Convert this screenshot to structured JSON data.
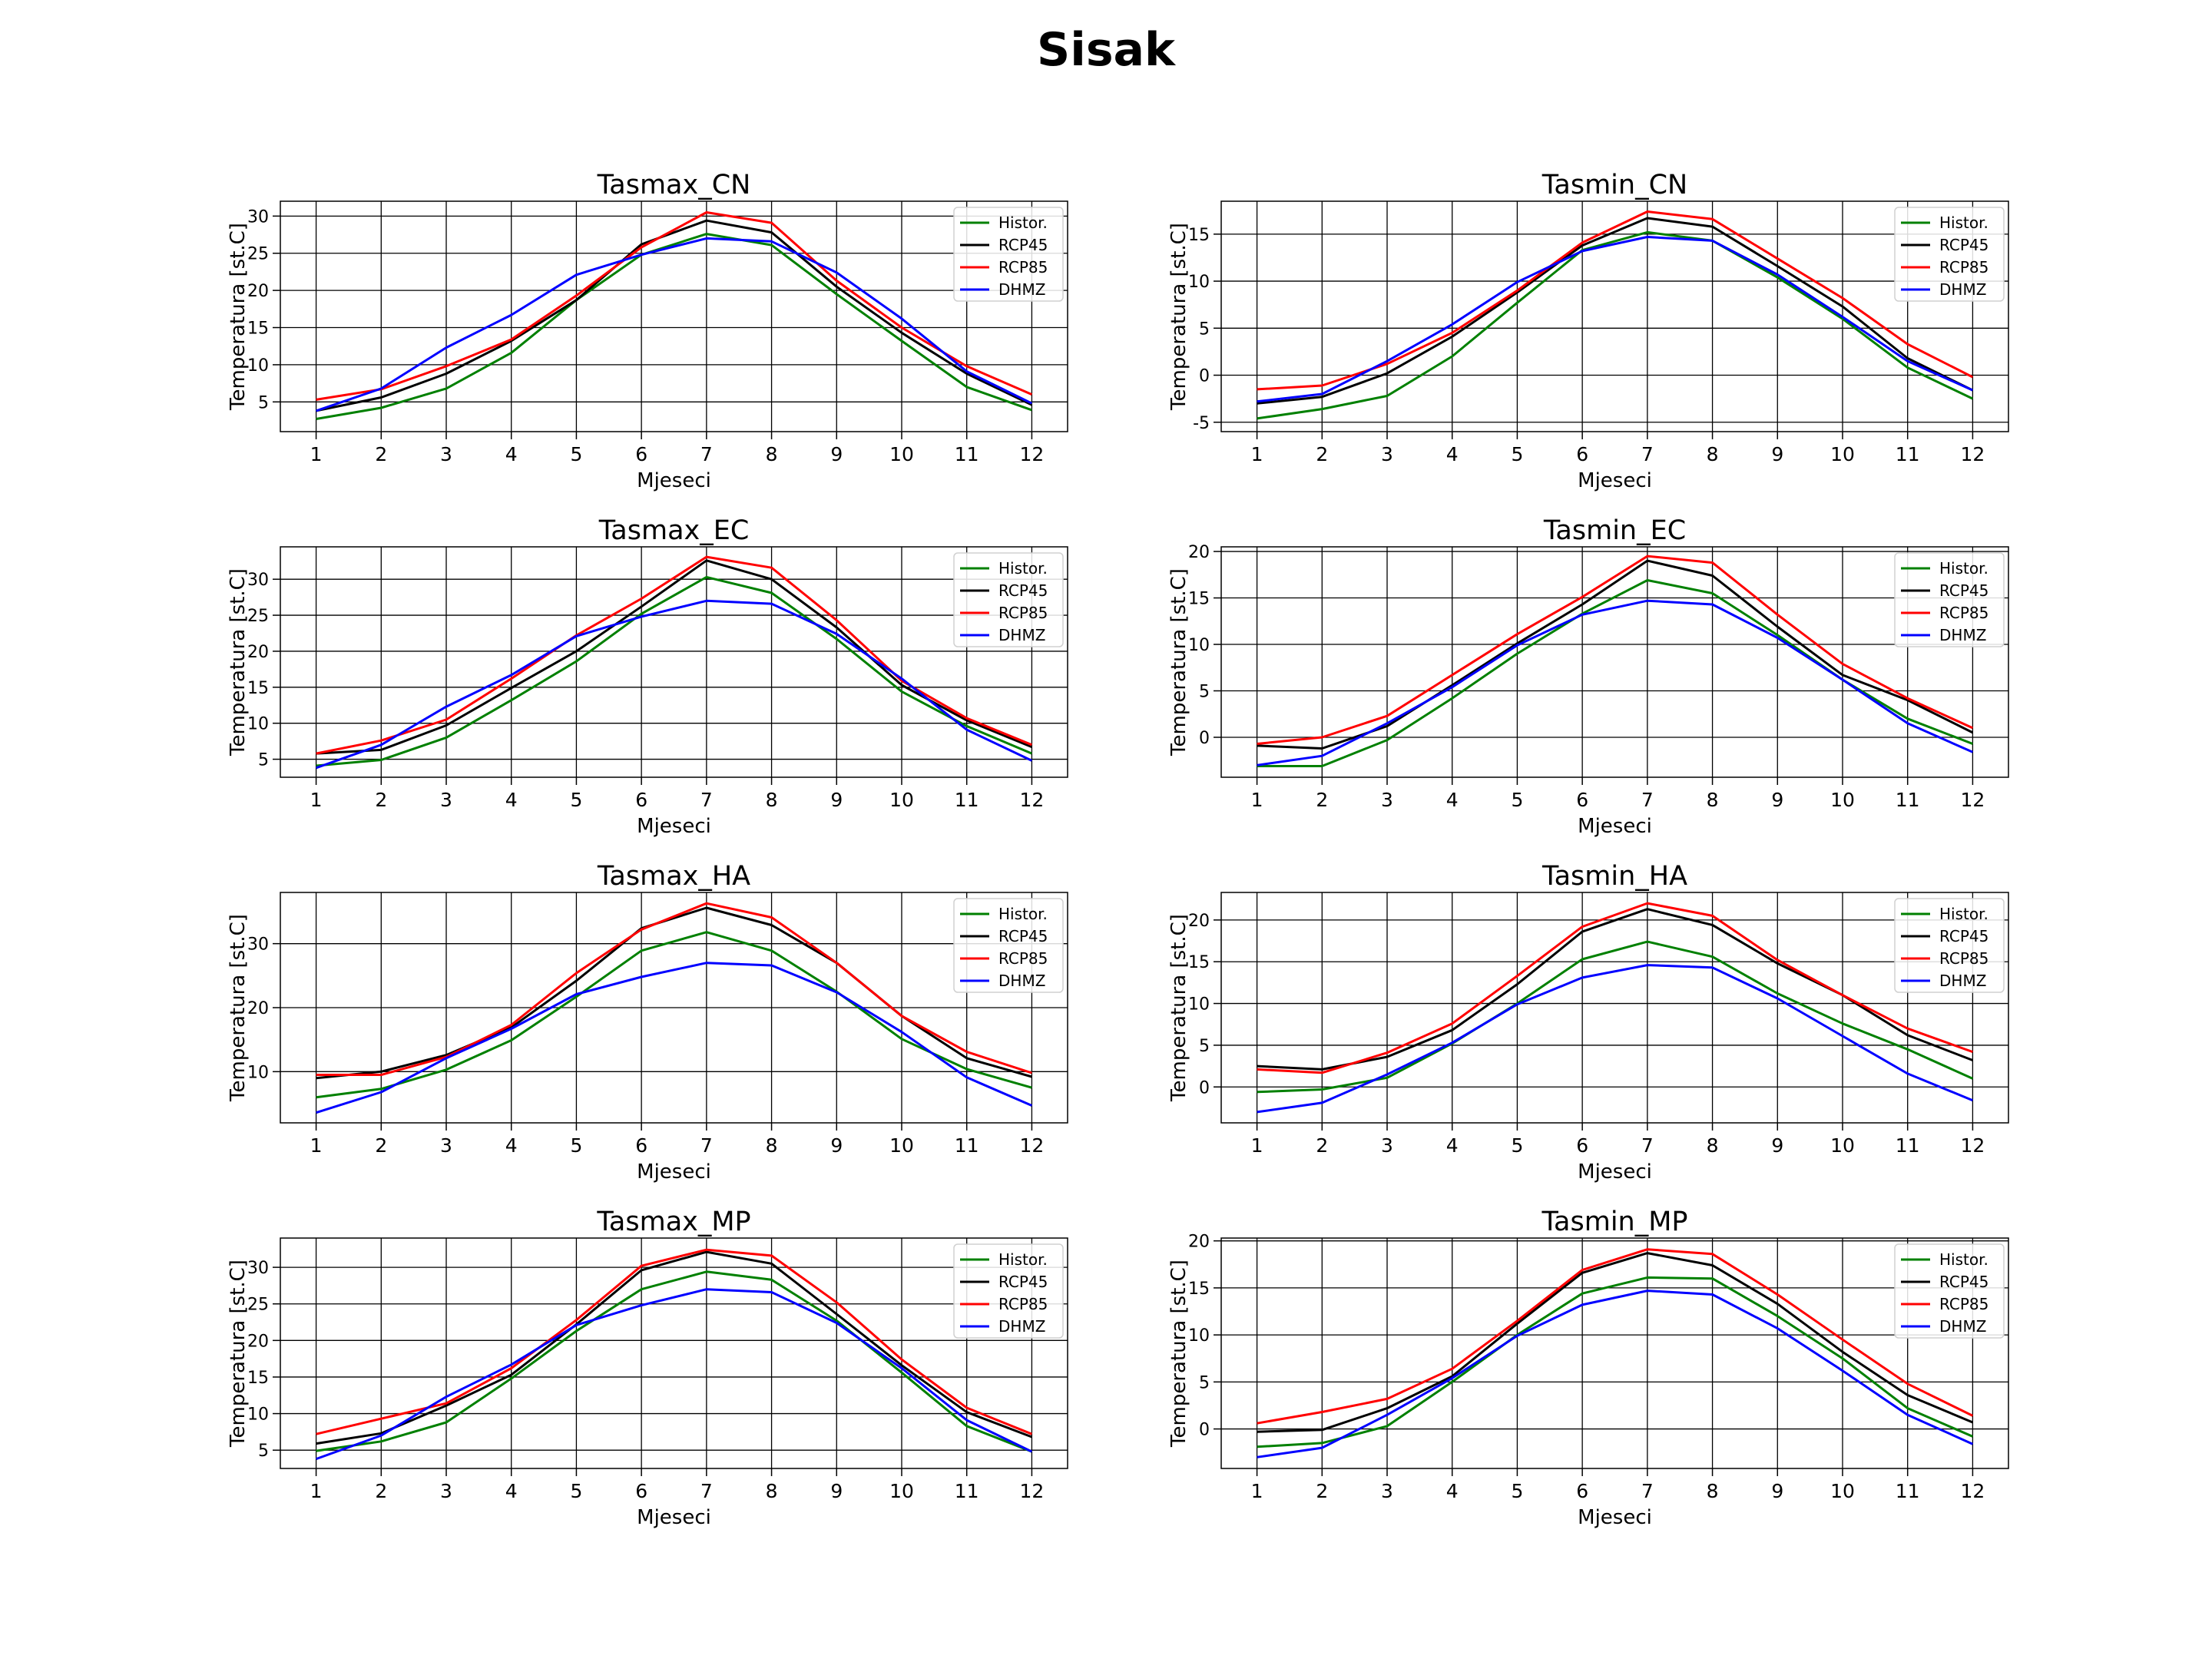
{
  "suptitle": "Sisak",
  "colors": {
    "Histor.": "#008000",
    "RCP45": "#000000",
    "RCP85": "#ff0000",
    "DHMZ": "#0000ff"
  },
  "chart_data": [
    {
      "type": "line",
      "title": "Tasmax_CN",
      "xlabel": "Mjeseci",
      "ylabel": "Temperatura [st.C]",
      "x": [
        1,
        2,
        3,
        4,
        5,
        6,
        7,
        8,
        9,
        10,
        11,
        12
      ],
      "ylim": [
        1,
        32
      ],
      "yticks": [
        5,
        10,
        15,
        20,
        25,
        30
      ],
      "grid": true,
      "legend": "top-right",
      "series": [
        {
          "name": "Histor.",
          "values": [
            2.7,
            4.2,
            6.8,
            11.6,
            18.7,
            24.8,
            27.6,
            26.1,
            19.5,
            13.2,
            7.0,
            3.9
          ]
        },
        {
          "name": "RCP45",
          "values": [
            3.8,
            5.6,
            8.8,
            13.2,
            18.7,
            26.2,
            29.4,
            27.8,
            20.5,
            14.3,
            8.8,
            4.6
          ]
        },
        {
          "name": "RCP85",
          "values": [
            5.3,
            6.7,
            9.8,
            13.4,
            19.3,
            25.8,
            30.5,
            29.1,
            21.3,
            15.0,
            9.8,
            6.0
          ]
        },
        {
          "name": "DHMZ",
          "values": [
            3.8,
            6.8,
            12.3,
            16.7,
            22.1,
            24.8,
            27.0,
            26.6,
            22.4,
            16.2,
            9.1,
            4.8
          ]
        }
      ]
    },
    {
      "type": "line",
      "title": "Tasmin_CN",
      "xlabel": "Mjeseci",
      "ylabel": "Temperatura [st.C]",
      "x": [
        1,
        2,
        3,
        4,
        5,
        6,
        7,
        8,
        9,
        10,
        11,
        12
      ],
      "ylim": [
        -6,
        18.5
      ],
      "yticks": [
        -5,
        0,
        5,
        10,
        15
      ],
      "grid": true,
      "legend": "top-right",
      "series": [
        {
          "name": "Histor.",
          "values": [
            -4.6,
            -3.6,
            -2.2,
            2.0,
            7.7,
            13.3,
            15.2,
            14.3,
            10.4,
            6.0,
            0.8,
            -2.5
          ]
        },
        {
          "name": "RCP45",
          "values": [
            -3.0,
            -2.3,
            0.2,
            4.1,
            8.8,
            13.8,
            16.7,
            15.8,
            11.6,
            7.3,
            1.8,
            -1.6
          ]
        },
        {
          "name": "RCP85",
          "values": [
            -1.5,
            -1.1,
            1.2,
            4.5,
            9.0,
            14.1,
            17.4,
            16.6,
            12.4,
            8.2,
            3.3,
            -0.2
          ]
        },
        {
          "name": "DHMZ",
          "values": [
            -2.8,
            -2.0,
            1.5,
            5.4,
            9.9,
            13.2,
            14.7,
            14.3,
            10.7,
            6.2,
            1.5,
            -1.6
          ]
        }
      ]
    },
    {
      "type": "line",
      "title": "Tasmax_EC",
      "xlabel": "Mjeseci",
      "ylabel": "Temperatura [st.C]",
      "x": [
        1,
        2,
        3,
        4,
        5,
        6,
        7,
        8,
        9,
        10,
        11,
        12
      ],
      "ylim": [
        2.5,
        34.5
      ],
      "yticks": [
        5,
        10,
        15,
        20,
        25,
        30
      ],
      "grid": true,
      "legend": "top-right",
      "series": [
        {
          "name": "Histor.",
          "values": [
            4.1,
            4.9,
            8.0,
            13.2,
            18.6,
            25.2,
            30.3,
            28.1,
            21.7,
            14.4,
            9.6,
            5.8
          ]
        },
        {
          "name": "RCP45",
          "values": [
            5.8,
            6.3,
            9.7,
            14.9,
            20.0,
            26.2,
            32.6,
            30.0,
            23.3,
            15.3,
            10.4,
            6.7
          ]
        },
        {
          "name": "RCP85",
          "values": [
            5.8,
            7.6,
            10.5,
            16.2,
            22.2,
            27.3,
            33.1,
            31.6,
            24.3,
            15.9,
            10.7,
            7.0
          ]
        },
        {
          "name": "DHMZ",
          "values": [
            3.8,
            7.0,
            12.3,
            16.7,
            22.1,
            24.8,
            27.0,
            26.6,
            22.4,
            16.2,
            9.1,
            4.8
          ]
        }
      ]
    },
    {
      "type": "line",
      "title": "Tasmin_EC",
      "xlabel": "Mjeseci",
      "ylabel": "Temperatura [st.C]",
      "x": [
        1,
        2,
        3,
        4,
        5,
        6,
        7,
        8,
        9,
        10,
        11,
        12
      ],
      "ylim": [
        -4.3,
        20.5
      ],
      "yticks": [
        0,
        5,
        10,
        15,
        20
      ],
      "grid": true,
      "legend": "top-right",
      "series": [
        {
          "name": "Histor.",
          "values": [
            -3.1,
            -3.1,
            -0.3,
            4.2,
            9.0,
            13.3,
            16.9,
            15.5,
            11.0,
            6.2,
            2.0,
            -0.7
          ]
        },
        {
          "name": "RCP45",
          "values": [
            -0.9,
            -1.2,
            1.2,
            5.6,
            10.1,
            14.3,
            19.0,
            17.4,
            11.9,
            6.7,
            4.0,
            0.5
          ]
        },
        {
          "name": "RCP85",
          "values": [
            -0.7,
            0.0,
            2.3,
            6.7,
            11.1,
            15.1,
            19.5,
            18.8,
            13.2,
            7.9,
            4.2,
            1.0
          ]
        },
        {
          "name": "DHMZ",
          "values": [
            -3.0,
            -2.0,
            1.5,
            5.4,
            9.9,
            13.2,
            14.7,
            14.3,
            10.7,
            6.2,
            1.5,
            -1.6
          ]
        }
      ]
    },
    {
      "type": "line",
      "title": "Tasmax_HA",
      "xlabel": "Mjeseci",
      "ylabel": "Temperatura [st.C]",
      "x": [
        1,
        2,
        3,
        4,
        5,
        6,
        7,
        8,
        9,
        10,
        11,
        12
      ],
      "ylim": [
        2,
        38
      ],
      "yticks": [
        10,
        20,
        30
      ],
      "grid": true,
      "legend": "top-right",
      "series": [
        {
          "name": "Histor.",
          "values": [
            6.0,
            7.3,
            10.3,
            14.9,
            21.7,
            28.9,
            31.8,
            28.9,
            22.5,
            15.1,
            10.4,
            7.5
          ]
        },
        {
          "name": "RCP45",
          "values": [
            9.0,
            10.0,
            12.6,
            16.9,
            24.2,
            32.4,
            35.6,
            32.9,
            27.0,
            18.7,
            12.1,
            9.2
          ]
        },
        {
          "name": "RCP85",
          "values": [
            9.5,
            9.5,
            12.3,
            17.3,
            25.4,
            32.2,
            36.3,
            34.1,
            27.0,
            18.7,
            13.1,
            9.8
          ]
        },
        {
          "name": "DHMZ",
          "values": [
            3.6,
            6.8,
            12.1,
            16.7,
            22.1,
            24.8,
            27.0,
            26.6,
            22.4,
            16.2,
            9.1,
            4.7
          ]
        }
      ]
    },
    {
      "type": "line",
      "title": "Tasmin_HA",
      "xlabel": "Mjeseci",
      "ylabel": "Temperatura [st.C]",
      "x": [
        1,
        2,
        3,
        4,
        5,
        6,
        7,
        8,
        9,
        10,
        11,
        12
      ],
      "ylim": [
        -4.3,
        23.3
      ],
      "yticks": [
        0,
        5,
        10,
        15,
        20
      ],
      "grid": true,
      "legend": "top-right",
      "series": [
        {
          "name": "Histor.",
          "values": [
            -0.6,
            -0.3,
            1.1,
            5.2,
            10.0,
            15.3,
            17.4,
            15.6,
            11.2,
            7.6,
            4.5,
            1.0
          ]
        },
        {
          "name": "RCP45",
          "values": [
            2.5,
            2.1,
            3.6,
            6.8,
            12.3,
            18.6,
            21.3,
            19.4,
            14.8,
            11.0,
            6.2,
            3.2
          ]
        },
        {
          "name": "RCP85",
          "values": [
            2.1,
            1.7,
            4.1,
            7.6,
            13.3,
            19.2,
            22.0,
            20.5,
            15.2,
            11.0,
            7.0,
            4.2
          ]
        },
        {
          "name": "DHMZ",
          "values": [
            -3.0,
            -1.9,
            1.5,
            5.3,
            9.9,
            13.1,
            14.6,
            14.3,
            10.6,
            6.1,
            1.6,
            -1.6
          ]
        }
      ]
    },
    {
      "type": "line",
      "title": "Tasmax_MP",
      "xlabel": "Mjeseci",
      "ylabel": "Temperatura [st.C]",
      "x": [
        1,
        2,
        3,
        4,
        5,
        6,
        7,
        8,
        9,
        10,
        11,
        12
      ],
      "ylim": [
        2.5,
        34
      ],
      "yticks": [
        5,
        10,
        15,
        20,
        25,
        30
      ],
      "grid": true,
      "legend": "top-right",
      "series": [
        {
          "name": "Histor.",
          "values": [
            4.9,
            6.2,
            8.8,
            14.8,
            21.3,
            27.0,
            29.4,
            28.3,
            22.7,
            15.6,
            8.3,
            4.8
          ]
        },
        {
          "name": "RCP45",
          "values": [
            5.9,
            7.3,
            11.1,
            15.3,
            22.2,
            29.6,
            32.1,
            30.5,
            23.6,
            16.6,
            10.2,
            6.8
          ]
        },
        {
          "name": "RCP85",
          "values": [
            7.2,
            9.3,
            11.4,
            16.2,
            22.8,
            30.2,
            32.4,
            31.6,
            25.2,
            17.4,
            10.8,
            7.2
          ]
        },
        {
          "name": "DHMZ",
          "values": [
            3.8,
            7.0,
            12.3,
            16.7,
            22.1,
            24.8,
            27.0,
            26.6,
            22.4,
            16.2,
            9.1,
            4.8
          ]
        }
      ]
    },
    {
      "type": "line",
      "title": "Tasmin_MP",
      "xlabel": "Mjeseci",
      "ylabel": "Temperatura [st.C]",
      "x": [
        1,
        2,
        3,
        4,
        5,
        6,
        7,
        8,
        9,
        10,
        11,
        12
      ],
      "ylim": [
        -4.2,
        20.3
      ],
      "yticks": [
        0,
        5,
        10,
        15,
        20
      ],
      "grid": true,
      "legend": "top-right",
      "series": [
        {
          "name": "Histor.",
          "values": [
            -1.9,
            -1.5,
            0.3,
            5.0,
            10.0,
            14.4,
            16.1,
            16.0,
            12.0,
            7.5,
            2.2,
            -0.8
          ]
        },
        {
          "name": "RCP45",
          "values": [
            -0.3,
            -0.1,
            2.2,
            5.6,
            11.2,
            16.6,
            18.7,
            17.4,
            13.3,
            8.2,
            3.6,
            0.7
          ]
        },
        {
          "name": "RCP85",
          "values": [
            0.6,
            1.8,
            3.2,
            6.4,
            11.5,
            16.9,
            19.1,
            18.6,
            14.3,
            9.5,
            4.8,
            1.4
          ]
        },
        {
          "name": "DHMZ",
          "values": [
            -3.0,
            -2.0,
            1.5,
            5.4,
            9.9,
            13.2,
            14.7,
            14.3,
            10.7,
            6.2,
            1.5,
            -1.6
          ]
        }
      ]
    }
  ]
}
